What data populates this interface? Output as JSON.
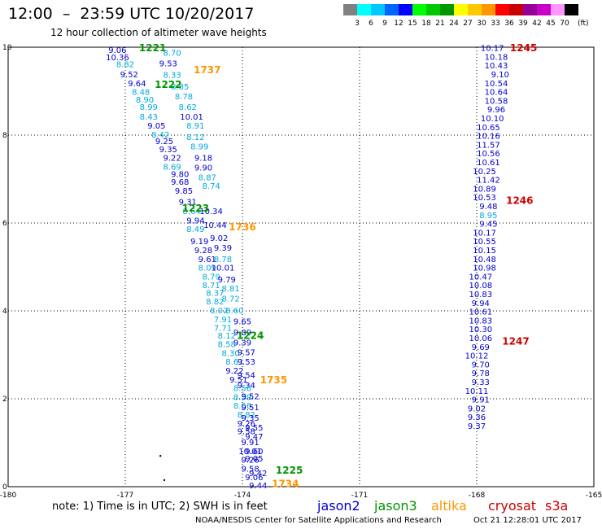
{
  "header": {
    "title": "12:00  –  23:59 UTC 10/20/2017",
    "subtitle": "12 hour collection of altimeter wave heights"
  },
  "colorbar": {
    "labels": [
      "3",
      "6",
      "9",
      "12",
      "15",
      "18",
      "21",
      "24",
      "27",
      "30",
      "33",
      "36",
      "39",
      "42",
      "45",
      "70"
    ],
    "unit": "(ft)",
    "colors": [
      "#808080",
      "#00ffff",
      "#00c8ff",
      "#0064ff",
      "#0000ff",
      "#00ff00",
      "#00c800",
      "#009600",
      "#ffff00",
      "#ffc800",
      "#ff9600",
      "#ff0000",
      "#c80000",
      "#960096",
      "#c800c8",
      "#ff96ff",
      "#000000"
    ]
  },
  "footer": {
    "note": "note:  1) Time is in UTC;  2) SWH is in feet",
    "legend": [
      {
        "label": "jason2",
        "color": "#0000cc"
      },
      {
        "label": "jason3",
        "color": "#009600"
      },
      {
        "label": "altika",
        "color": "#ff9600"
      },
      {
        "label": "cryosat",
        "color": "#cc0000"
      },
      {
        "label": "s3a",
        "color": "#cc0000"
      }
    ],
    "credit_left": "NOAA/NESDIS Center for Satellite Applications and Research",
    "credit_right": "Oct 21 12:28:01 UTC 2017"
  },
  "chart_data": {
    "type": "scatter",
    "xlim": [
      -180,
      -165
    ],
    "ylim": [
      0,
      10
    ],
    "xticks": [
      "-180",
      "-177",
      "-174",
      "-171",
      "-168",
      "-165"
    ],
    "yticks": [
      "0",
      "2",
      "4",
      "6",
      "8",
      "10"
    ],
    "grid": true,
    "colors": {
      "jason2": "#0000cc",
      "jason3": "#009600",
      "altika": "#ff9600",
      "cryosat": "#cc0000",
      "text_light": "#00aadd"
    },
    "passes": [
      {
        "label": "1221",
        "x": -176.3,
        "y": 9.97,
        "color": "#009600"
      },
      {
        "label": "1222",
        "x": -175.9,
        "y": 9.14,
        "color": "#009600"
      },
      {
        "label": "1737",
        "x": -174.9,
        "y": 9.47,
        "color": "#ff9600"
      },
      {
        "label": "1223",
        "x": -175.2,
        "y": 6.32,
        "color": "#009600"
      },
      {
        "label": "1736",
        "x": -174.0,
        "y": 5.9,
        "color": "#ff9600"
      },
      {
        "label": "1224",
        "x": -173.8,
        "y": 3.43,
        "color": "#009600"
      },
      {
        "label": "1735",
        "x": -173.2,
        "y": 2.42,
        "color": "#ff9600"
      },
      {
        "label": "1225",
        "x": -172.8,
        "y": 0.36,
        "color": "#009600"
      },
      {
        "label": "1734",
        "x": -172.9,
        "y": 0.06,
        "color": "#ff9600"
      },
      {
        "label": "1245",
        "x": -166.8,
        "y": 9.97,
        "color": "#cc0000"
      },
      {
        "label": "1246",
        "x": -166.9,
        "y": 6.5,
        "color": "#cc0000"
      },
      {
        "label": "1247",
        "x": -167.0,
        "y": 3.3,
        "color": "#cc0000"
      }
    ],
    "values": [
      {
        "t": "9.06",
        "x": -177.2,
        "y": 9.93,
        "c": "d"
      },
      {
        "t": "8.70",
        "x": -175.8,
        "y": 9.86,
        "c": "l"
      },
      {
        "t": "10.36",
        "x": -177.2,
        "y": 9.76,
        "c": "d"
      },
      {
        "t": "8.82",
        "x": -177.0,
        "y": 9.6,
        "c": "l"
      },
      {
        "t": "9.53",
        "x": -175.9,
        "y": 9.62,
        "c": "d"
      },
      {
        "t": "9.52",
        "x": -176.9,
        "y": 9.37,
        "c": "d"
      },
      {
        "t": "8.33",
        "x": -175.8,
        "y": 9.36,
        "c": "l"
      },
      {
        "t": "9.64",
        "x": -176.7,
        "y": 9.17,
        "c": "d"
      },
      {
        "t": "8.85",
        "x": -175.6,
        "y": 9.09,
        "c": "l"
      },
      {
        "t": "8.48",
        "x": -176.6,
        "y": 8.97,
        "c": "l"
      },
      {
        "t": "8.78",
        "x": -175.5,
        "y": 8.87,
        "c": "l"
      },
      {
        "t": "8.90",
        "x": -176.5,
        "y": 8.8,
        "c": "l"
      },
      {
        "t": "8.99",
        "x": -176.4,
        "y": 8.63,
        "c": "l"
      },
      {
        "t": "8.62",
        "x": -175.4,
        "y": 8.63,
        "c": "l"
      },
      {
        "t": "8.43",
        "x": -176.4,
        "y": 8.41,
        "c": "l"
      },
      {
        "t": "10.01",
        "x": -175.3,
        "y": 8.41,
        "c": "d"
      },
      {
        "t": "9.05",
        "x": -176.2,
        "y": 8.2,
        "c": "d"
      },
      {
        "t": "8.91",
        "x": -175.2,
        "y": 8.2,
        "c": "l"
      },
      {
        "t": "8.42",
        "x": -176.1,
        "y": 8.0,
        "c": "l"
      },
      {
        "t": "8.12",
        "x": -175.2,
        "y": 7.94,
        "c": "l"
      },
      {
        "t": "9.25",
        "x": -176.0,
        "y": 7.85,
        "c": "d"
      },
      {
        "t": "8.99",
        "x": -175.1,
        "y": 7.73,
        "c": "l"
      },
      {
        "t": "9.35",
        "x": -175.9,
        "y": 7.67,
        "c": "d"
      },
      {
        "t": "9.22",
        "x": -175.8,
        "y": 7.47,
        "c": "d"
      },
      {
        "t": "9.18",
        "x": -175.0,
        "y": 7.47,
        "c": "d"
      },
      {
        "t": "8.69",
        "x": -175.8,
        "y": 7.27,
        "c": "l"
      },
      {
        "t": "9.90",
        "x": -175.0,
        "y": 7.25,
        "c": "d"
      },
      {
        "t": "9.80",
        "x": -175.6,
        "y": 7.1,
        "c": "d"
      },
      {
        "t": "8.87",
        "x": -174.9,
        "y": 7.03,
        "c": "l"
      },
      {
        "t": "9.68",
        "x": -175.6,
        "y": 6.93,
        "c": "d"
      },
      {
        "t": "8.74",
        "x": -174.8,
        "y": 6.83,
        "c": "l"
      },
      {
        "t": "9.85",
        "x": -175.5,
        "y": 6.72,
        "c": "d"
      },
      {
        "t": "9.31",
        "x": -175.4,
        "y": 6.47,
        "c": "d"
      },
      {
        "t": "8.64",
        "x": -175.3,
        "y": 6.26,
        "c": "l"
      },
      {
        "t": "10.34",
        "x": -174.8,
        "y": 6.26,
        "c": "d"
      },
      {
        "t": "9.94",
        "x": -175.2,
        "y": 6.05,
        "c": "d"
      },
      {
        "t": "10.44",
        "x": -174.7,
        "y": 5.94,
        "c": "d"
      },
      {
        "t": "8.49",
        "x": -175.2,
        "y": 5.85,
        "c": "l"
      },
      {
        "t": "9.02",
        "x": -174.6,
        "y": 5.65,
        "c": "d"
      },
      {
        "t": "9.19",
        "x": -175.1,
        "y": 5.57,
        "c": "d"
      },
      {
        "t": "9.39",
        "x": -174.5,
        "y": 5.43,
        "c": "d"
      },
      {
        "t": "9.28",
        "x": -175.0,
        "y": 5.37,
        "c": "d"
      },
      {
        "t": "9.61",
        "x": -174.9,
        "y": 5.17,
        "c": "d"
      },
      {
        "t": "8.78",
        "x": -174.5,
        "y": 5.17,
        "c": "l"
      },
      {
        "t": "8.09",
        "x": -174.9,
        "y": 4.97,
        "c": "l"
      },
      {
        "t": "10.01",
        "x": -174.5,
        "y": 4.97,
        "c": "d"
      },
      {
        "t": "8.79",
        "x": -174.8,
        "y": 4.77,
        "c": "l"
      },
      {
        "t": "9.79",
        "x": -174.4,
        "y": 4.7,
        "c": "d"
      },
      {
        "t": "8.71",
        "x": -174.8,
        "y": 4.57,
        "c": "l"
      },
      {
        "t": "8.81",
        "x": -174.3,
        "y": 4.5,
        "c": "l"
      },
      {
        "t": "8.37",
        "x": -174.7,
        "y": 4.4,
        "c": "l"
      },
      {
        "t": "8.82",
        "x": -174.7,
        "y": 4.2,
        "c": "l"
      },
      {
        "t": "8.72",
        "x": -174.3,
        "y": 4.27,
        "c": "l"
      },
      {
        "t": "8.02",
        "x": -174.6,
        "y": 4.0,
        "c": "l"
      },
      {
        "t": "8.60",
        "x": -174.2,
        "y": 4.0,
        "c": "l"
      },
      {
        "t": "7.91",
        "x": -174.5,
        "y": 3.8,
        "c": "l"
      },
      {
        "t": "9.65",
        "x": -174.0,
        "y": 3.75,
        "c": "d"
      },
      {
        "t": "7.71",
        "x": -174.5,
        "y": 3.6,
        "c": "l"
      },
      {
        "t": "8.12",
        "x": -174.4,
        "y": 3.43,
        "c": "l"
      },
      {
        "t": "9.89",
        "x": -174.0,
        "y": 3.5,
        "c": "d"
      },
      {
        "t": "8.58",
        "x": -174.4,
        "y": 3.23,
        "c": "l"
      },
      {
        "t": "9.39",
        "x": -174.0,
        "y": 3.27,
        "c": "d"
      },
      {
        "t": "8.30",
        "x": -174.3,
        "y": 3.03,
        "c": "l"
      },
      {
        "t": "9.57",
        "x": -173.9,
        "y": 3.05,
        "c": "d"
      },
      {
        "t": "8.61",
        "x": -174.2,
        "y": 2.83,
        "c": "l"
      },
      {
        "t": "9.53",
        "x": -173.9,
        "y": 2.83,
        "c": "d"
      },
      {
        "t": "9.22",
        "x": -174.2,
        "y": 2.63,
        "c": "d"
      },
      {
        "t": "9.54",
        "x": -173.9,
        "y": 2.53,
        "c": "d"
      },
      {
        "t": "9.51",
        "x": -174.1,
        "y": 2.43,
        "c": "d"
      },
      {
        "t": "9.34",
        "x": -173.9,
        "y": 2.3,
        "c": "d"
      },
      {
        "t": "8.56",
        "x": -174.0,
        "y": 2.23,
        "c": "l"
      },
      {
        "t": "8.59",
        "x": -174.0,
        "y": 2.03,
        "c": "l"
      },
      {
        "t": "9.52",
        "x": -173.8,
        "y": 2.05,
        "c": "d"
      },
      {
        "t": "8.66",
        "x": -174.0,
        "y": 1.83,
        "c": "l"
      },
      {
        "t": "9.51",
        "x": -173.8,
        "y": 1.8,
        "c": "d"
      },
      {
        "t": "8.82",
        "x": -173.9,
        "y": 1.63,
        "c": "l"
      },
      {
        "t": "9.35",
        "x": -173.8,
        "y": 1.56,
        "c": "d"
      },
      {
        "t": "9.26",
        "x": -173.9,
        "y": 1.43,
        "c": "d"
      },
      {
        "t": "9.55",
        "x": -173.7,
        "y": 1.33,
        "c": "d"
      },
      {
        "t": "9.58",
        "x": -173.9,
        "y": 1.25,
        "c": "d"
      },
      {
        "t": "9.47",
        "x": -173.7,
        "y": 1.13,
        "c": "d"
      },
      {
        "t": "9.91",
        "x": -173.8,
        "y": 1.0,
        "c": "d"
      },
      {
        "t": "10.01",
        "x": -173.8,
        "y": 0.8,
        "c": "d"
      },
      {
        "t": "9.60",
        "x": -173.7,
        "y": 0.8,
        "c": "d"
      },
      {
        "t": "9.26",
        "x": -173.8,
        "y": 0.6,
        "c": "d"
      },
      {
        "t": "9.05",
        "x": -173.7,
        "y": 0.63,
        "c": "d"
      },
      {
        "t": "9.58",
        "x": -173.8,
        "y": 0.4,
        "c": "d"
      },
      {
        "t": "9.42",
        "x": -173.6,
        "y": 0.3,
        "c": "d"
      },
      {
        "t": "9.06",
        "x": -173.7,
        "y": 0.2,
        "c": "d"
      },
      {
        "t": "9.44",
        "x": -173.6,
        "y": 0.02,
        "c": "d"
      },
      {
        "t": "10.17",
        "x": -167.6,
        "y": 9.97,
        "c": "d"
      },
      {
        "t": "10.18",
        "x": -167.5,
        "y": 9.77,
        "c": "d"
      },
      {
        "t": "10.43",
        "x": -167.5,
        "y": 9.57,
        "c": "d"
      },
      {
        "t": "9.10",
        "x": -167.4,
        "y": 9.37,
        "c": "d"
      },
      {
        "t": "10.54",
        "x": -167.5,
        "y": 9.17,
        "c": "d"
      },
      {
        "t": "10.64",
        "x": -167.5,
        "y": 8.97,
        "c": "d"
      },
      {
        "t": "10.58",
        "x": -167.5,
        "y": 8.77,
        "c": "d"
      },
      {
        "t": "9.96",
        "x": -167.5,
        "y": 8.57,
        "c": "d"
      },
      {
        "t": "10.10",
        "x": -167.6,
        "y": 8.37,
        "c": "d"
      },
      {
        "t": "10.65",
        "x": -167.7,
        "y": 8.17,
        "c": "d"
      },
      {
        "t": "10.16",
        "x": -167.7,
        "y": 7.97,
        "c": "d"
      },
      {
        "t": "11.57",
        "x": -167.7,
        "y": 7.77,
        "c": "d"
      },
      {
        "t": "10.56",
        "x": -167.7,
        "y": 7.57,
        "c": "d"
      },
      {
        "t": "10.61",
        "x": -167.7,
        "y": 7.37,
        "c": "d"
      },
      {
        "t": "10.25",
        "x": -167.8,
        "y": 7.17,
        "c": "d"
      },
      {
        "t": "11.42",
        "x": -167.7,
        "y": 6.97,
        "c": "d"
      },
      {
        "t": "10.89",
        "x": -167.8,
        "y": 6.77,
        "c": "d"
      },
      {
        "t": "10.53",
        "x": -167.8,
        "y": 6.57,
        "c": "d"
      },
      {
        "t": "9.48",
        "x": -167.7,
        "y": 6.37,
        "c": "d"
      },
      {
        "t": "8.95",
        "x": -167.7,
        "y": 6.17,
        "c": "l"
      },
      {
        "t": "9.45",
        "x": -167.7,
        "y": 5.97,
        "c": "d"
      },
      {
        "t": "10.17",
        "x": -167.8,
        "y": 5.77,
        "c": "d"
      },
      {
        "t": "10.55",
        "x": -167.8,
        "y": 5.57,
        "c": "d"
      },
      {
        "t": "10.15",
        "x": -167.8,
        "y": 5.37,
        "c": "d"
      },
      {
        "t": "10.48",
        "x": -167.8,
        "y": 5.17,
        "c": "d"
      },
      {
        "t": "10.98",
        "x": -167.8,
        "y": 4.97,
        "c": "d"
      },
      {
        "t": "10.47",
        "x": -167.9,
        "y": 4.77,
        "c": "d"
      },
      {
        "t": "10.08",
        "x": -167.9,
        "y": 4.57,
        "c": "d"
      },
      {
        "t": "10.83",
        "x": -167.9,
        "y": 4.37,
        "c": "d"
      },
      {
        "t": "9.94",
        "x": -167.9,
        "y": 4.17,
        "c": "d"
      },
      {
        "t": "10.61",
        "x": -167.9,
        "y": 3.97,
        "c": "d"
      },
      {
        "t": "10.83",
        "x": -167.9,
        "y": 3.77,
        "c": "d"
      },
      {
        "t": "10.30",
        "x": -167.9,
        "y": 3.57,
        "c": "d"
      },
      {
        "t": "10.06",
        "x": -167.9,
        "y": 3.37,
        "c": "d"
      },
      {
        "t": "9.69",
        "x": -167.9,
        "y": 3.17,
        "c": "d"
      },
      {
        "t": "10.12",
        "x": -168.0,
        "y": 2.97,
        "c": "d"
      },
      {
        "t": "9.70",
        "x": -167.9,
        "y": 2.77,
        "c": "d"
      },
      {
        "t": "9.78",
        "x": -167.9,
        "y": 2.57,
        "c": "d"
      },
      {
        "t": "9.33",
        "x": -167.9,
        "y": 2.37,
        "c": "d"
      },
      {
        "t": "10.11",
        "x": -168.0,
        "y": 2.17,
        "c": "d"
      },
      {
        "t": "9.91",
        "x": -167.9,
        "y": 1.97,
        "c": "d"
      },
      {
        "t": "9.02",
        "x": -168.0,
        "y": 1.77,
        "c": "d"
      },
      {
        "t": "9.36",
        "x": -168.0,
        "y": 1.57,
        "c": "d"
      },
      {
        "t": "9.37",
        "x": -168.0,
        "y": 1.37,
        "c": "d"
      }
    ]
  }
}
